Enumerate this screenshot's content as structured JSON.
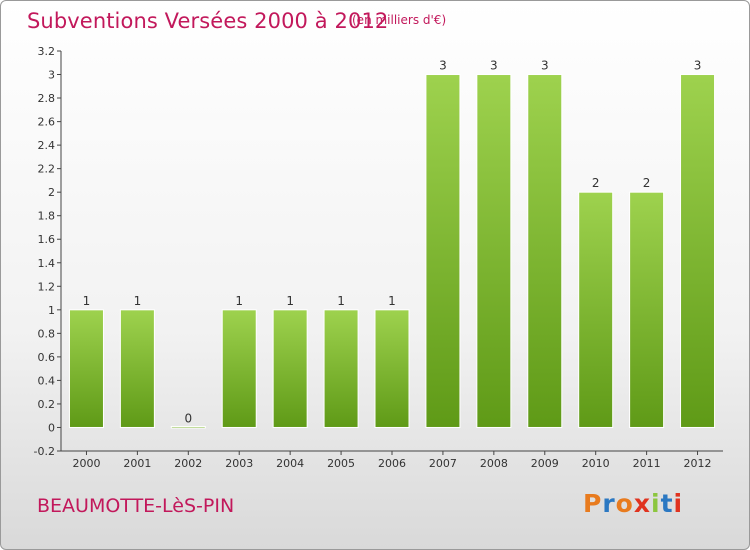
{
  "header": {
    "title": "Subventions Versées 2000 à 2012",
    "subtitle": "(en milliers d'€)"
  },
  "footer": {
    "commune": "BEAUMOTTE-LèS-PIN",
    "logo_letters": [
      "P",
      "r",
      "o",
      "x",
      "i",
      "t",
      "i"
    ],
    "logo_colors": [
      "#e87b1e",
      "#2b78c2",
      "#e87b1e",
      "#e0331f",
      "#8cc63f",
      "#2b78c2",
      "#e0331f"
    ]
  },
  "colors": {
    "bar_light": "#9ed24e",
    "bar_dark": "#5f9a17",
    "title": "#c2185b"
  },
  "chart_data": {
    "type": "bar",
    "categories": [
      "2000",
      "2001",
      "2002",
      "2003",
      "2004",
      "2005",
      "2006",
      "2007",
      "2008",
      "2009",
      "2010",
      "2011",
      "2012"
    ],
    "values": [
      1,
      1,
      0,
      1,
      1,
      1,
      1,
      3,
      3,
      3,
      2,
      2,
      3
    ],
    "data_labels": [
      "1",
      "1",
      "0",
      "1",
      "1",
      "1",
      "1",
      "3",
      "3",
      "3",
      "2",
      "2",
      "3"
    ],
    "title": "Subventions Versées 2000 à 2012",
    "ylim": [
      -0.2,
      3.2
    ],
    "y_ticks": [
      "-0.2",
      "0",
      "0.2",
      "0.4",
      "0.6",
      "0.8",
      "1",
      "1.2",
      "1.4",
      "1.6",
      "1.8",
      "2",
      "2.2",
      "2.4",
      "2.6",
      "2.8",
      "3",
      "3.2"
    ],
    "y_tick_values": [
      -0.2,
      0,
      0.2,
      0.4,
      0.6,
      0.8,
      1,
      1.2,
      1.4,
      1.6,
      1.8,
      2,
      2.2,
      2.4,
      2.6,
      2.8,
      3,
      3.2
    ],
    "grid": false
  }
}
